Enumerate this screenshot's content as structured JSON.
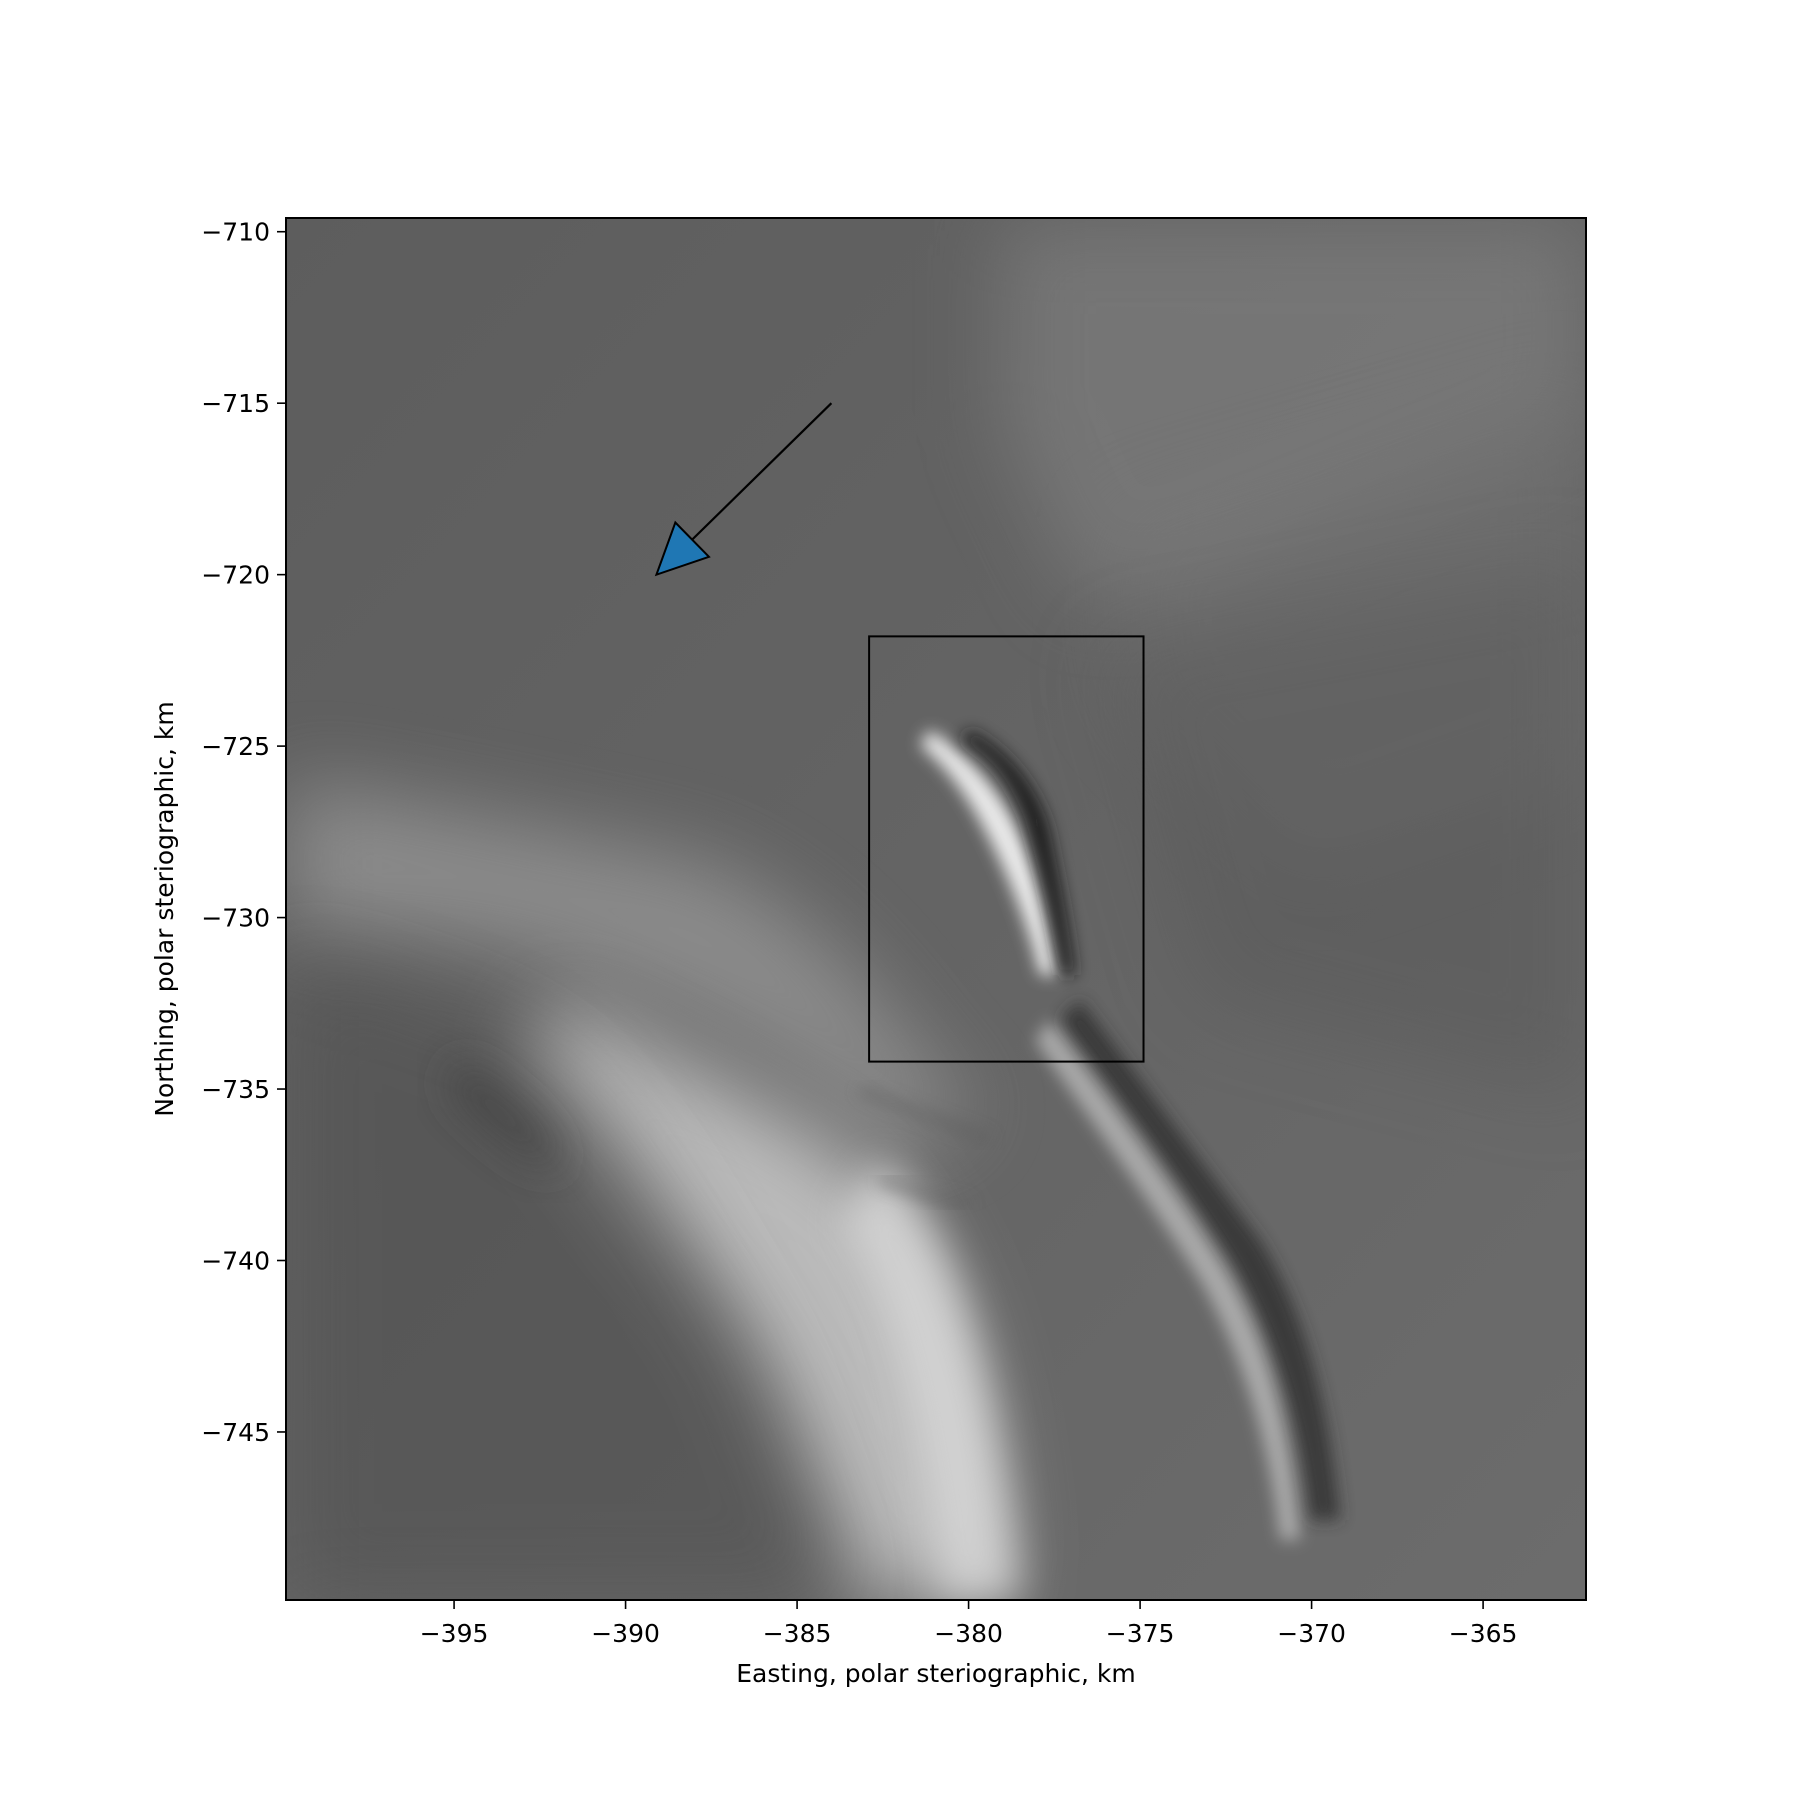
{
  "chart_data": {
    "type": "heatmap",
    "title": "",
    "colormap": "gray",
    "xlabel": "Easting, polar steriographic, km",
    "ylabel": "Northing, polar steriographic, km",
    "xlim": [
      -399.9,
      -362.0
    ],
    "ylim": [
      -749.9,
      -709.6
    ],
    "xticks": [
      -395,
      -390,
      -385,
      -380,
      -375,
      -370,
      -365
    ],
    "yticks": [
      -710,
      -715,
      -720,
      -725,
      -730,
      -735,
      -740,
      -745
    ],
    "xtick_labels": [
      "−395",
      "−390",
      "−385",
      "−380",
      "−375",
      "−370",
      "−365"
    ],
    "ytick_labels": [
      "−710",
      "−715",
      "−720",
      "−725",
      "−730",
      "−735",
      "−740",
      "−745"
    ],
    "grid": false,
    "annotations": [
      {
        "type": "rectangle",
        "edge_color": "#000000",
        "x_range": [
          -382.9,
          -374.9
        ],
        "y_range": [
          -734.2,
          -721.8
        ]
      },
      {
        "type": "arrow",
        "face_color": "#1f77b4",
        "edge_color": "#000000",
        "x_start": -384.0,
        "y_start": -715.0,
        "x_end": -389.1,
        "y_end": -720.0
      }
    ]
  }
}
